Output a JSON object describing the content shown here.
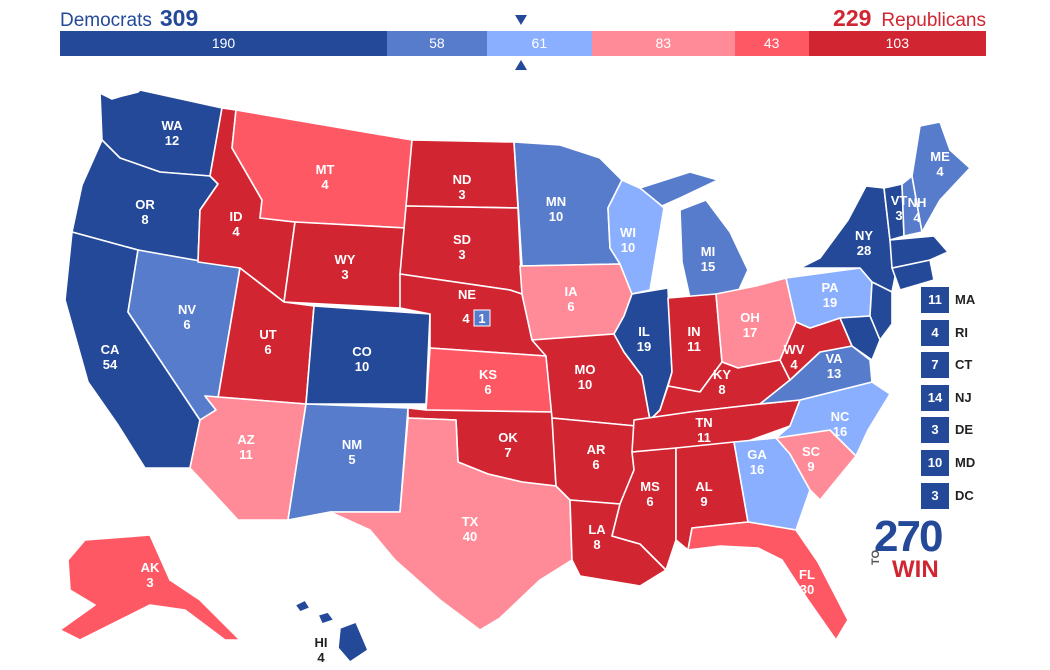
{
  "header": {
    "dem_label": "Democrats",
    "dem_total": "309",
    "rep_total": "229",
    "rep_label": "Republicans"
  },
  "colors": {
    "safe_d": "#244999",
    "likely_d": "#577ccc",
    "lean_d": "#8aafff",
    "lean_r": "#ff8b98",
    "likely_r": "#ff5865",
    "safe_r": "#d22532"
  },
  "bar_segments": [
    {
      "value": "190",
      "rating": "safe_d"
    },
    {
      "value": "58",
      "rating": "likely_d"
    },
    {
      "value": "61",
      "rating": "lean_d"
    },
    {
      "value": "83",
      "rating": "lean_r"
    },
    {
      "value": "43",
      "rating": "likely_r"
    },
    {
      "value": "103",
      "rating": "safe_r"
    }
  ],
  "states": [
    {
      "abbr": "WA",
      "ev": "12",
      "rating": "safe_d"
    },
    {
      "abbr": "OR",
      "ev": "8",
      "rating": "safe_d"
    },
    {
      "abbr": "CA",
      "ev": "54",
      "rating": "safe_d"
    },
    {
      "abbr": "NV",
      "ev": "6",
      "rating": "likely_d"
    },
    {
      "abbr": "ID",
      "ev": "4",
      "rating": "safe_r"
    },
    {
      "abbr": "MT",
      "ev": "4",
      "rating": "likely_r"
    },
    {
      "abbr": "WY",
      "ev": "3",
      "rating": "safe_r"
    },
    {
      "abbr": "UT",
      "ev": "6",
      "rating": "safe_r"
    },
    {
      "abbr": "AZ",
      "ev": "11",
      "rating": "lean_r"
    },
    {
      "abbr": "CO",
      "ev": "10",
      "rating": "safe_d"
    },
    {
      "abbr": "NM",
      "ev": "5",
      "rating": "likely_d"
    },
    {
      "abbr": "ND",
      "ev": "3",
      "rating": "safe_r"
    },
    {
      "abbr": "SD",
      "ev": "3",
      "rating": "safe_r"
    },
    {
      "abbr": "NE",
      "ev": "4",
      "rating": "safe_r"
    },
    {
      "abbr": "KS",
      "ev": "6",
      "rating": "likely_r"
    },
    {
      "abbr": "OK",
      "ev": "7",
      "rating": "safe_r"
    },
    {
      "abbr": "TX",
      "ev": "40",
      "rating": "lean_r"
    },
    {
      "abbr": "MN",
      "ev": "10",
      "rating": "likely_d"
    },
    {
      "abbr": "IA",
      "ev": "6",
      "rating": "lean_r"
    },
    {
      "abbr": "MO",
      "ev": "10",
      "rating": "safe_r"
    },
    {
      "abbr": "AR",
      "ev": "6",
      "rating": "safe_r"
    },
    {
      "abbr": "LA",
      "ev": "8",
      "rating": "safe_r"
    },
    {
      "abbr": "WI",
      "ev": "10",
      "rating": "lean_d"
    },
    {
      "abbr": "IL",
      "ev": "19",
      "rating": "safe_d"
    },
    {
      "abbr": "MI",
      "ev": "15",
      "rating": "likely_d"
    },
    {
      "abbr": "IN",
      "ev": "11",
      "rating": "safe_r"
    },
    {
      "abbr": "OH",
      "ev": "17",
      "rating": "lean_r"
    },
    {
      "abbr": "KY",
      "ev": "8",
      "rating": "safe_r"
    },
    {
      "abbr": "TN",
      "ev": "11",
      "rating": "safe_r"
    },
    {
      "abbr": "MS",
      "ev": "6",
      "rating": "safe_r"
    },
    {
      "abbr": "AL",
      "ev": "9",
      "rating": "safe_r"
    },
    {
      "abbr": "GA",
      "ev": "16",
      "rating": "lean_d"
    },
    {
      "abbr": "FL",
      "ev": "30",
      "rating": "likely_r"
    },
    {
      "abbr": "SC",
      "ev": "9",
      "rating": "lean_r"
    },
    {
      "abbr": "NC",
      "ev": "16",
      "rating": "lean_d"
    },
    {
      "abbr": "VA",
      "ev": "13",
      "rating": "likely_d"
    },
    {
      "abbr": "WV",
      "ev": "4",
      "rating": "safe_r"
    },
    {
      "abbr": "PA",
      "ev": "19",
      "rating": "lean_d"
    },
    {
      "abbr": "NY",
      "ev": "28",
      "rating": "safe_d"
    },
    {
      "abbr": "VT",
      "ev": "3",
      "rating": "safe_d"
    },
    {
      "abbr": "NH",
      "ev": "4",
      "rating": "likely_d"
    },
    {
      "abbr": "ME",
      "ev": "4",
      "rating": "likely_d"
    },
    {
      "abbr": "AK",
      "ev": "3",
      "rating": "likely_r"
    },
    {
      "abbr": "HI",
      "ev": "4",
      "rating": "safe_d"
    }
  ],
  "ne_district": {
    "ev": "1",
    "rating": "likely_d"
  },
  "small_states": [
    {
      "ev": "11",
      "abbr": "MA",
      "rating": "safe_d"
    },
    {
      "ev": "4",
      "abbr": "RI",
      "rating": "safe_d"
    },
    {
      "ev": "7",
      "abbr": "CT",
      "rating": "safe_d"
    },
    {
      "ev": "14",
      "abbr": "NJ",
      "rating": "safe_d"
    },
    {
      "ev": "3",
      "abbr": "DE",
      "rating": "safe_d"
    },
    {
      "ev": "10",
      "abbr": "MD",
      "rating": "safe_d"
    },
    {
      "ev": "3",
      "abbr": "DC",
      "rating": "safe_d"
    }
  ],
  "logo": {
    "number": "270",
    "to": "TO",
    "win": "WIN"
  }
}
